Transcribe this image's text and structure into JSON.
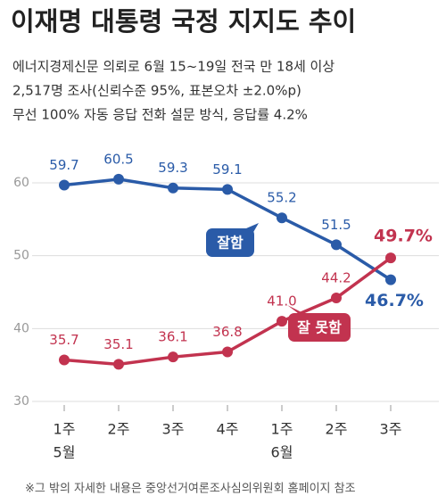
{
  "chart_data": {
    "type": "line",
    "title": "이재명 대통령 국정 지지도 추이",
    "subtitle": [
      "에너지경제신문 의뢰로 6월 15~19일 전국 만 18세 이상",
      "2,517명 조사(신뢰수준 95%, 표본오차 ±2.0%p)",
      "무선 100% 자동 응답 전화 설문 방식, 응답률 4.2%"
    ],
    "categories": [
      "1주",
      "2주",
      "3주",
      "4주",
      "1주",
      "2주",
      "3주"
    ],
    "x_group_labels": [
      "5월",
      null,
      null,
      null,
      "6월",
      null,
      null
    ],
    "series": [
      {
        "name": "잘함",
        "color": "#2a5ba8",
        "values": [
          59.7,
          60.5,
          59.3,
          59.1,
          55.2,
          51.5,
          46.7
        ],
        "value_labels": [
          "59.7",
          "60.5",
          "59.3",
          "59.1",
          "55.2",
          "51.5",
          "46.7%"
        ]
      },
      {
        "name": "잘 못함",
        "color": "#c2334f",
        "values": [
          35.7,
          35.1,
          36.1,
          36.8,
          41.0,
          44.2,
          49.7
        ],
        "value_labels": [
          "35.7",
          "35.1",
          "36.1",
          "36.8",
          "41.0",
          "44.2",
          "49.7%"
        ]
      }
    ],
    "ylim": [
      30,
      60
    ],
    "yticks": [
      30,
      40,
      50,
      60
    ],
    "grid": true,
    "footnote": "※그 밖의 자세한 내용은 중앙선거여론조사심의위원회 홈페이지 참조"
  }
}
